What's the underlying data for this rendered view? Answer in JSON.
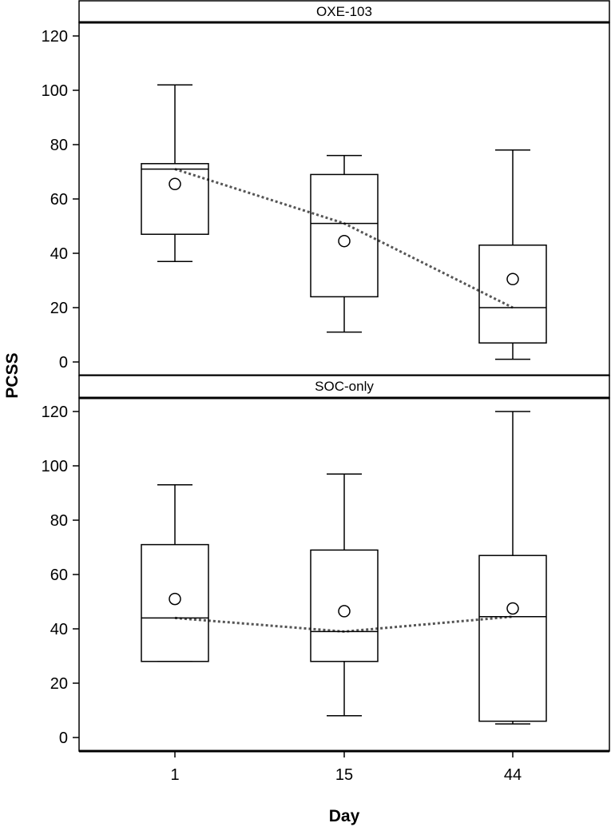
{
  "chart_data": {
    "type": "box",
    "xlabel": "Day",
    "ylabel": "PCSS",
    "categories": [
      "1",
      "15",
      "44"
    ],
    "ylim": [
      -5,
      125
    ],
    "yticks": [
      0,
      20,
      40,
      60,
      80,
      100,
      120
    ],
    "grid": false,
    "legend": "none",
    "colors": {
      "box_stroke": "#000000",
      "median_line": "#555555",
      "background": "#ffffff"
    },
    "panels": [
      {
        "label": "OXE-103",
        "boxes": [
          {
            "category": "1",
            "min": 37,
            "q1": 47,
            "median": 71,
            "q3": 73,
            "max": 102,
            "mean": 65.5
          },
          {
            "category": "15",
            "min": 11,
            "q1": 24,
            "median": 51,
            "q3": 69,
            "max": 76,
            "mean": 44.5
          },
          {
            "category": "44",
            "min": 1,
            "q1": 7,
            "median": 20,
            "q3": 43,
            "max": 78,
            "mean": 30.5
          }
        ]
      },
      {
        "label": "SOC-only",
        "boxes": [
          {
            "category": "1",
            "min": 28,
            "q1": 28,
            "median": 44,
            "q3": 71,
            "max": 93,
            "mean": 51
          },
          {
            "category": "15",
            "min": 8,
            "q1": 28,
            "median": 39,
            "q3": 69,
            "max": 97,
            "mean": 46.5
          },
          {
            "category": "44",
            "min": 5,
            "q1": 6,
            "median": 44.5,
            "q3": 67,
            "max": 120,
            "mean": 47.5
          }
        ]
      }
    ]
  }
}
